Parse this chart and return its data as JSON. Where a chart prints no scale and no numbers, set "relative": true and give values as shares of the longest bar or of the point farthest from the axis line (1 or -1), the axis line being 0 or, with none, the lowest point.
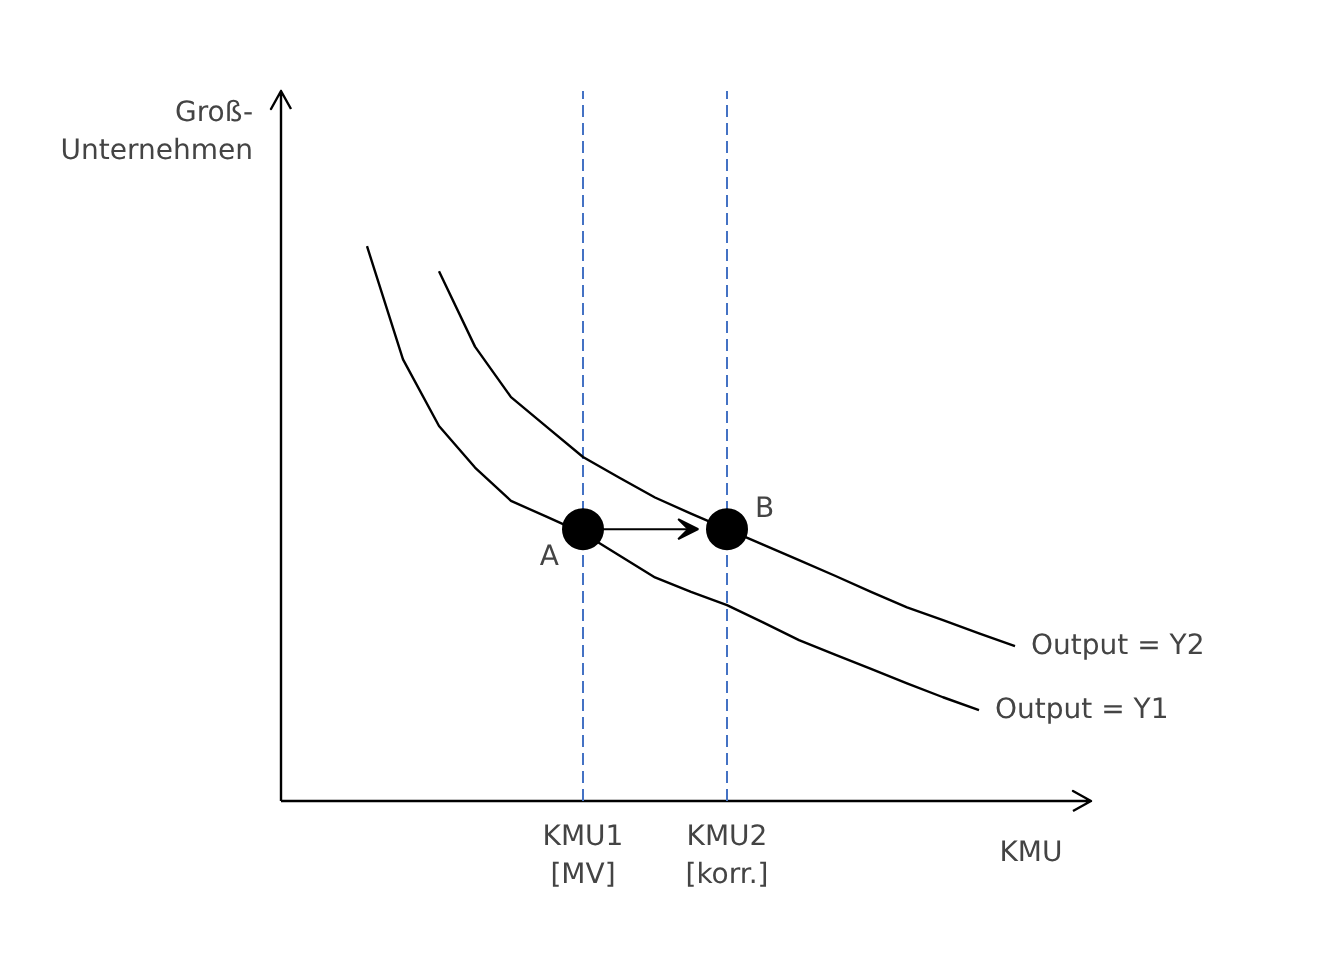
{
  "chart_data": {
    "type": "line",
    "relative": true,
    "ylabel": "Groß-\nUnternehmen",
    "xlabel": "KMU",
    "grid": false,
    "legend": false,
    "categories": [
      null,
      null,
      null,
      null,
      null,
      null,
      "KMU1\n[MV]",
      null,
      null,
      null,
      "KMU2\n[korr.]",
      null,
      null,
      null,
      null,
      null,
      null,
      null,
      null
    ],
    "series": [
      {
        "name": "Output = Y1",
        "color": "#000000",
        "values": [
          1.0,
          0.796,
          0.676,
          0.601,
          0.541,
          0.512,
          0.483,
          0.443,
          0.403,
          0.377,
          0.353,
          0.322,
          0.29,
          0.264,
          0.238,
          0.212,
          0.187,
          0.164,
          null
        ]
      },
      {
        "name": "Output = Y2",
        "color": "#000000",
        "values": [
          null,
          null,
          0.955,
          0.819,
          0.728,
          0.674,
          0.62,
          0.583,
          0.547,
          0.518,
          0.49,
          0.462,
          0.434,
          0.406,
          0.377,
          0.349,
          0.326,
          0.302,
          0.279
        ]
      },
      {
        "name": "A",
        "type": "scatter",
        "marker": "circle",
        "color": "#000000",
        "values": [
          null,
          null,
          null,
          null,
          null,
          null,
          0.49,
          null,
          null,
          null,
          null,
          null,
          null,
          null,
          null,
          null,
          null,
          null,
          null
        ]
      },
      {
        "name": "B",
        "type": "scatter",
        "marker": "circle",
        "color": "#000000",
        "values": [
          null,
          null,
          null,
          null,
          null,
          null,
          null,
          null,
          null,
          null,
          0.49,
          null,
          null,
          null,
          null,
          null,
          null,
          null,
          null
        ]
      }
    ],
    "ref_lines": [
      {
        "axis": "x",
        "value": "KMU1\n[MV]",
        "color": "#4472c4",
        "line_style": "dashed"
      },
      {
        "axis": "x",
        "value": "KMU2\n[korr.]",
        "color": "#4472c4",
        "line_style": "dashed"
      }
    ]
  }
}
